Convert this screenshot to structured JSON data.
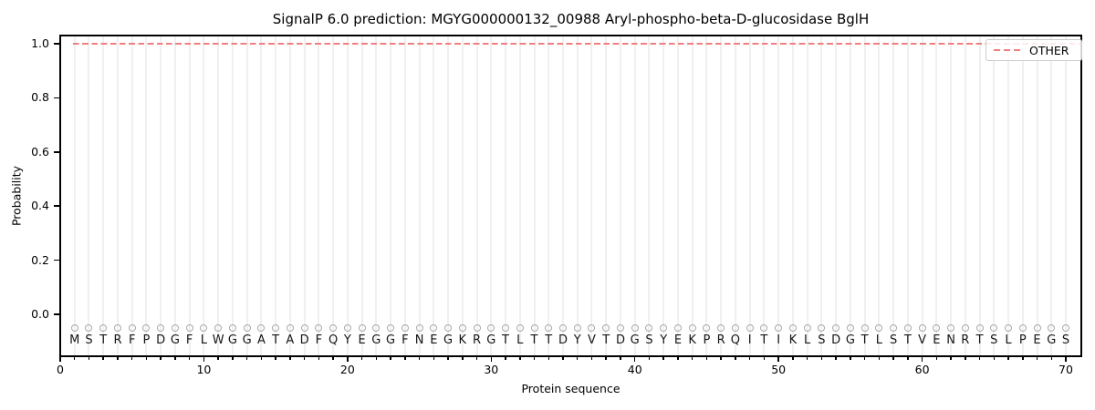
{
  "title": "SignalP 6.0 prediction: MGYG000000132_00988 Aryl-phospho-beta-D-glucosidase BglH",
  "axes": {
    "xlabel": "Protein sequence",
    "ylabel": "Probability",
    "x_tick_labels": [
      "0",
      "10",
      "20",
      "30",
      "40",
      "50",
      "60",
      "70"
    ],
    "x_tick_values": [
      0,
      10,
      20,
      30,
      40,
      50,
      60,
      70
    ],
    "y_tick_labels": [
      "0.0",
      "0.2",
      "0.4",
      "0.6",
      "0.8",
      "1.0"
    ],
    "y_tick_values": [
      0,
      0.2,
      0.4,
      0.6,
      0.8,
      1.0
    ]
  },
  "legend": {
    "label": "OTHER",
    "line_style": "dashed",
    "color": "#f07f7f",
    "position": "upper right"
  },
  "sequence": "MSTRFPDGFLWGGATADFQYEGGFNEGKRGTLTTDYVTDGSYEKPRQITIKLSDGTLSTVENRTSLPEGS",
  "colors": {
    "other_line": "#f07f7f",
    "marker_outline": "#a8a8a8",
    "gridline": "#f0f0f0",
    "axis": "#000000",
    "legend_border": "#cccccc",
    "text": "#000000"
  },
  "chart_data": {
    "type": "line",
    "title": "SignalP 6.0 prediction: MGYG000000132_00988 Aryl-phospho-beta-D-glucosidase BglH",
    "xlabel": "Protein sequence",
    "ylabel": "Probability",
    "xlim": [
      0,
      71
    ],
    "ylim": [
      -0.16,
      1.03
    ],
    "grid": "vertical-line-per-residue",
    "legend_position": "upper right",
    "x": [
      1,
      2,
      3,
      4,
      5,
      6,
      7,
      8,
      9,
      10,
      11,
      12,
      13,
      14,
      15,
      16,
      17,
      18,
      19,
      20,
      21,
      22,
      23,
      24,
      25,
      26,
      27,
      28,
      29,
      30,
      31,
      32,
      33,
      34,
      35,
      36,
      37,
      38,
      39,
      40,
      41,
      42,
      43,
      44,
      45,
      46,
      47,
      48,
      49,
      50,
      51,
      52,
      53,
      54,
      55,
      56,
      57,
      58,
      59,
      60,
      61,
      62,
      63,
      64,
      65,
      66,
      67,
      68,
      69,
      70
    ],
    "series": [
      {
        "name": "OTHER",
        "style": "dashed",
        "color": "#f07f7f",
        "values": [
          1.0,
          1.0,
          1.0,
          1.0,
          1.0,
          1.0,
          1.0,
          1.0,
          1.0,
          1.0,
          1.0,
          1.0,
          1.0,
          1.0,
          1.0,
          1.0,
          1.0,
          1.0,
          1.0,
          1.0,
          1.0,
          1.0,
          1.0,
          1.0,
          1.0,
          1.0,
          1.0,
          1.0,
          1.0,
          1.0,
          1.0,
          1.0,
          1.0,
          1.0,
          1.0,
          1.0,
          1.0,
          1.0,
          1.0,
          1.0,
          1.0,
          1.0,
          1.0,
          1.0,
          1.0,
          1.0,
          1.0,
          1.0,
          1.0,
          1.0,
          1.0,
          1.0,
          1.0,
          1.0,
          1.0,
          1.0,
          1.0,
          1.0,
          1.0,
          1.0,
          1.0,
          1.0,
          1.0,
          1.0,
          1.0,
          1.0,
          1.0,
          1.0,
          1.0,
          1.0
        ]
      }
    ],
    "residue_markers": {
      "symbol": "open-circle",
      "color": "#a8a8a8",
      "y": -0.05,
      "letters": "MSTRFPDGFLWGGATADFQYEGGFNEGKRGTLTTDYVTDGSYEKPRQITIKLSDGTLSTVENRTSLPEGS"
    }
  }
}
